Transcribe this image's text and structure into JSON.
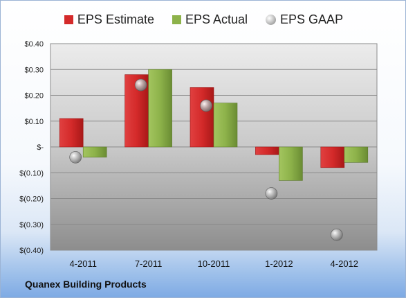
{
  "chart_data": {
    "type": "bar",
    "title": "",
    "categories": [
      "4-2011",
      "7-2011",
      "10-2011",
      "1-2012",
      "4-2012"
    ],
    "series": [
      {
        "name": "EPS Estimate",
        "type": "bar",
        "color": "#d42a2a",
        "values": [
          0.11,
          0.28,
          0.23,
          -0.03,
          -0.08
        ]
      },
      {
        "name": "EPS Actual",
        "type": "bar",
        "color": "#8db24a",
        "values": [
          -0.04,
          0.3,
          0.17,
          -0.13,
          -0.06
        ]
      },
      {
        "name": "EPS GAAP",
        "type": "scatter",
        "color": "#a8a8a8",
        "values": [
          -0.04,
          0.24,
          0.16,
          -0.18,
          -0.34
        ]
      }
    ],
    "ylim": [
      -0.4,
      0.4
    ],
    "yticks": [
      0.4,
      0.3,
      0.2,
      0.1,
      0,
      -0.1,
      -0.2,
      -0.3,
      -0.4
    ],
    "ytick_labels": [
      "$0.40",
      "$0.30",
      "$0.20",
      "$0.10",
      "$-",
      "$(0.10)",
      "$(0.20)",
      "$(0.30)",
      "$(0.40)"
    ],
    "grid": true,
    "legend_position": "top"
  },
  "legend": {
    "estimate": "EPS Estimate",
    "actual": "EPS Actual",
    "gaap": "EPS GAAP"
  },
  "company": "Quanex Building Products"
}
